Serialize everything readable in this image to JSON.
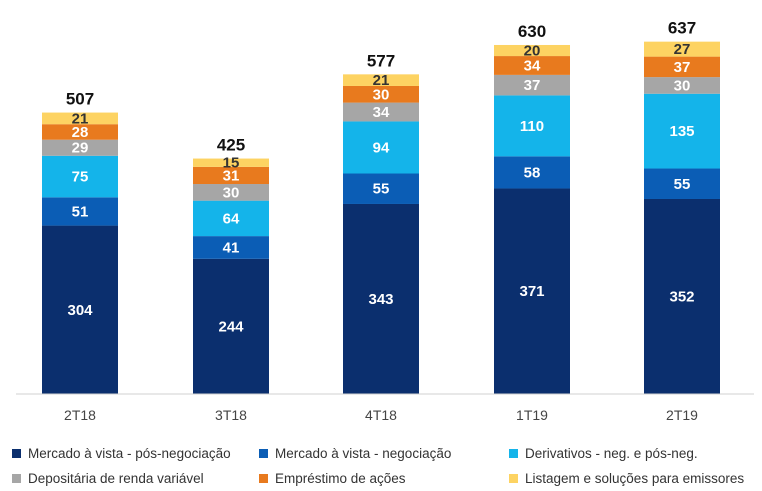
{
  "chart_data": {
    "type": "bar",
    "stacked": true,
    "title": "",
    "xlabel": "",
    "ylabel": "",
    "ylim": [
      0,
      680
    ],
    "grid": false,
    "legend_placement": "bottom",
    "categories": [
      "2T18",
      "3T18",
      "4T18",
      "1T19",
      "2T19"
    ],
    "totals": [
      507,
      425,
      577,
      630,
      637
    ],
    "series": [
      {
        "name": "Mercado à vista - pós-negociação",
        "color": "#0b2f6e",
        "label_color": "#ffffff",
        "values": [
          304,
          244,
          343,
          371,
          352
        ]
      },
      {
        "name": "Mercado à vista - negociação",
        "color": "#0b5db5",
        "label_color": "#ffffff",
        "values": [
          51,
          41,
          55,
          58,
          55
        ]
      },
      {
        "name": "Derivativos - neg. e pós-neg.",
        "color": "#14b4ea",
        "label_color": "#ffffff",
        "values": [
          75,
          64,
          94,
          110,
          135
        ]
      },
      {
        "name": "Depositária de renda variável",
        "color": "#a6a6a6",
        "label_color": "#ffffff",
        "values": [
          29,
          30,
          34,
          37,
          30
        ]
      },
      {
        "name": "Empréstimo de ações",
        "color": "#e87a1e",
        "label_color": "#ffffff",
        "values": [
          28,
          31,
          30,
          34,
          37
        ]
      },
      {
        "name": "Listagem e soluções para emissores",
        "color": "#fdd362",
        "label_color": "#333333",
        "values": [
          21,
          15,
          21,
          20,
          27
        ]
      }
    ]
  }
}
